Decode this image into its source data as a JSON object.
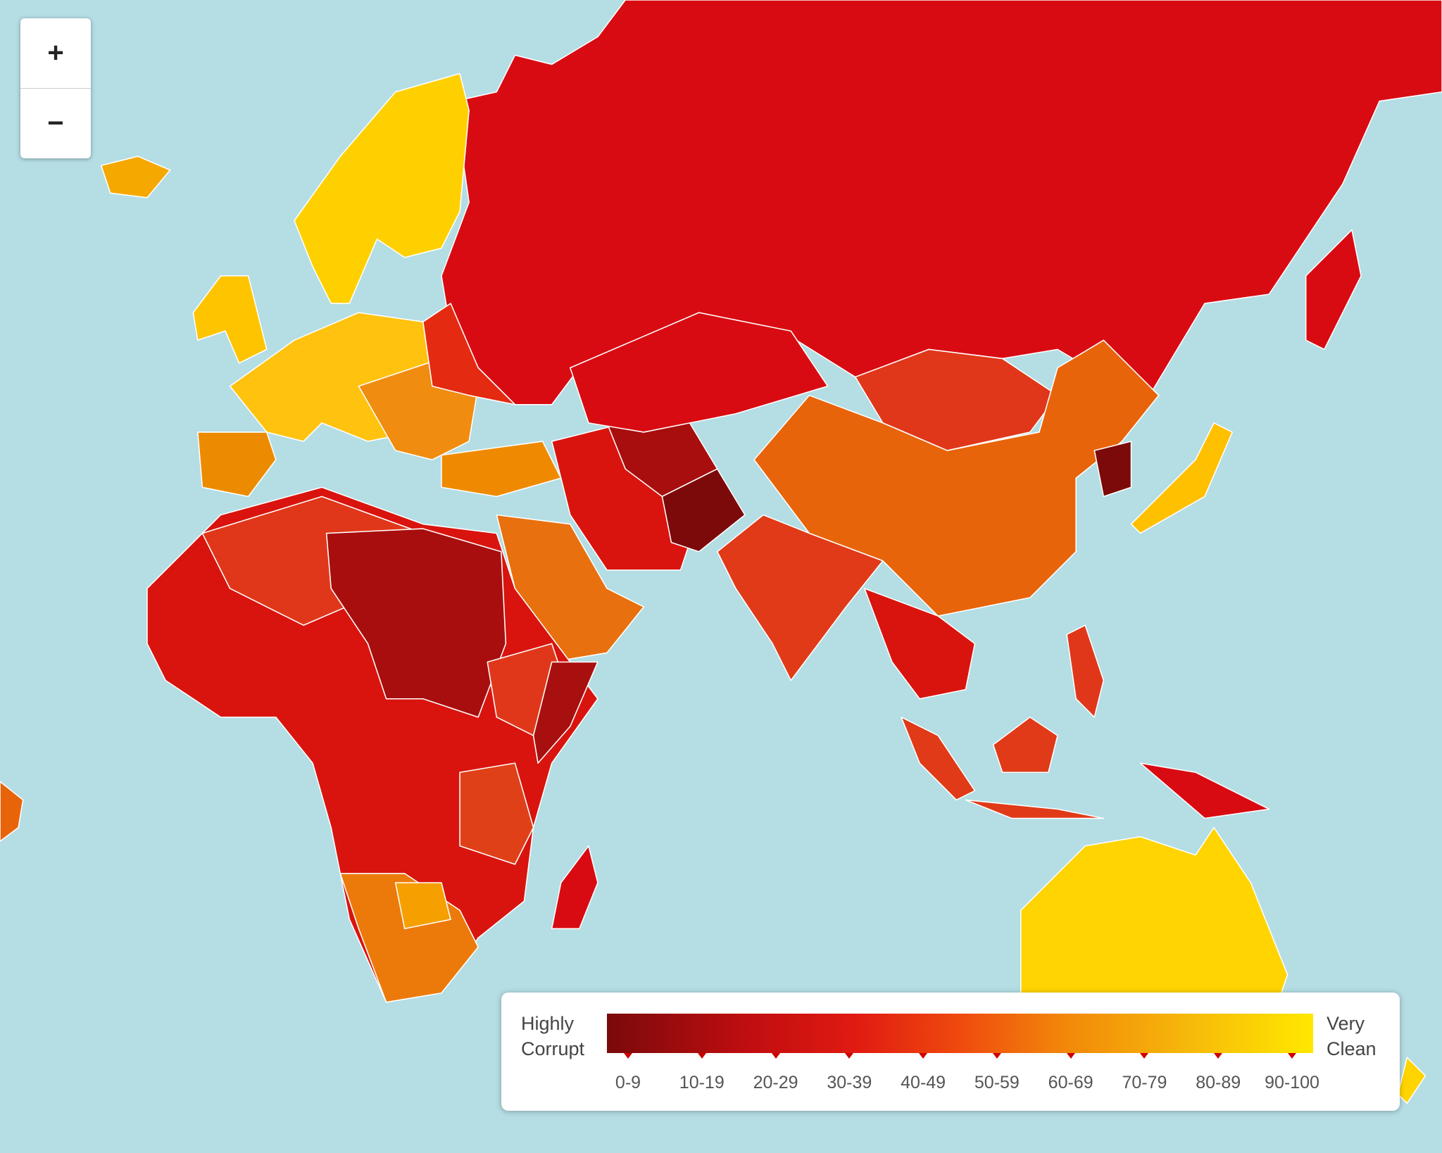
{
  "zoom": {
    "in": "+",
    "out": "−"
  },
  "legend": {
    "low_label": "Highly Corrupt",
    "high_label": "Very Clean",
    "ranges": [
      "0-9",
      "10-19",
      "20-29",
      "30-39",
      "40-49",
      "50-59",
      "60-69",
      "70-79",
      "80-89",
      "90-100"
    ]
  }
}
